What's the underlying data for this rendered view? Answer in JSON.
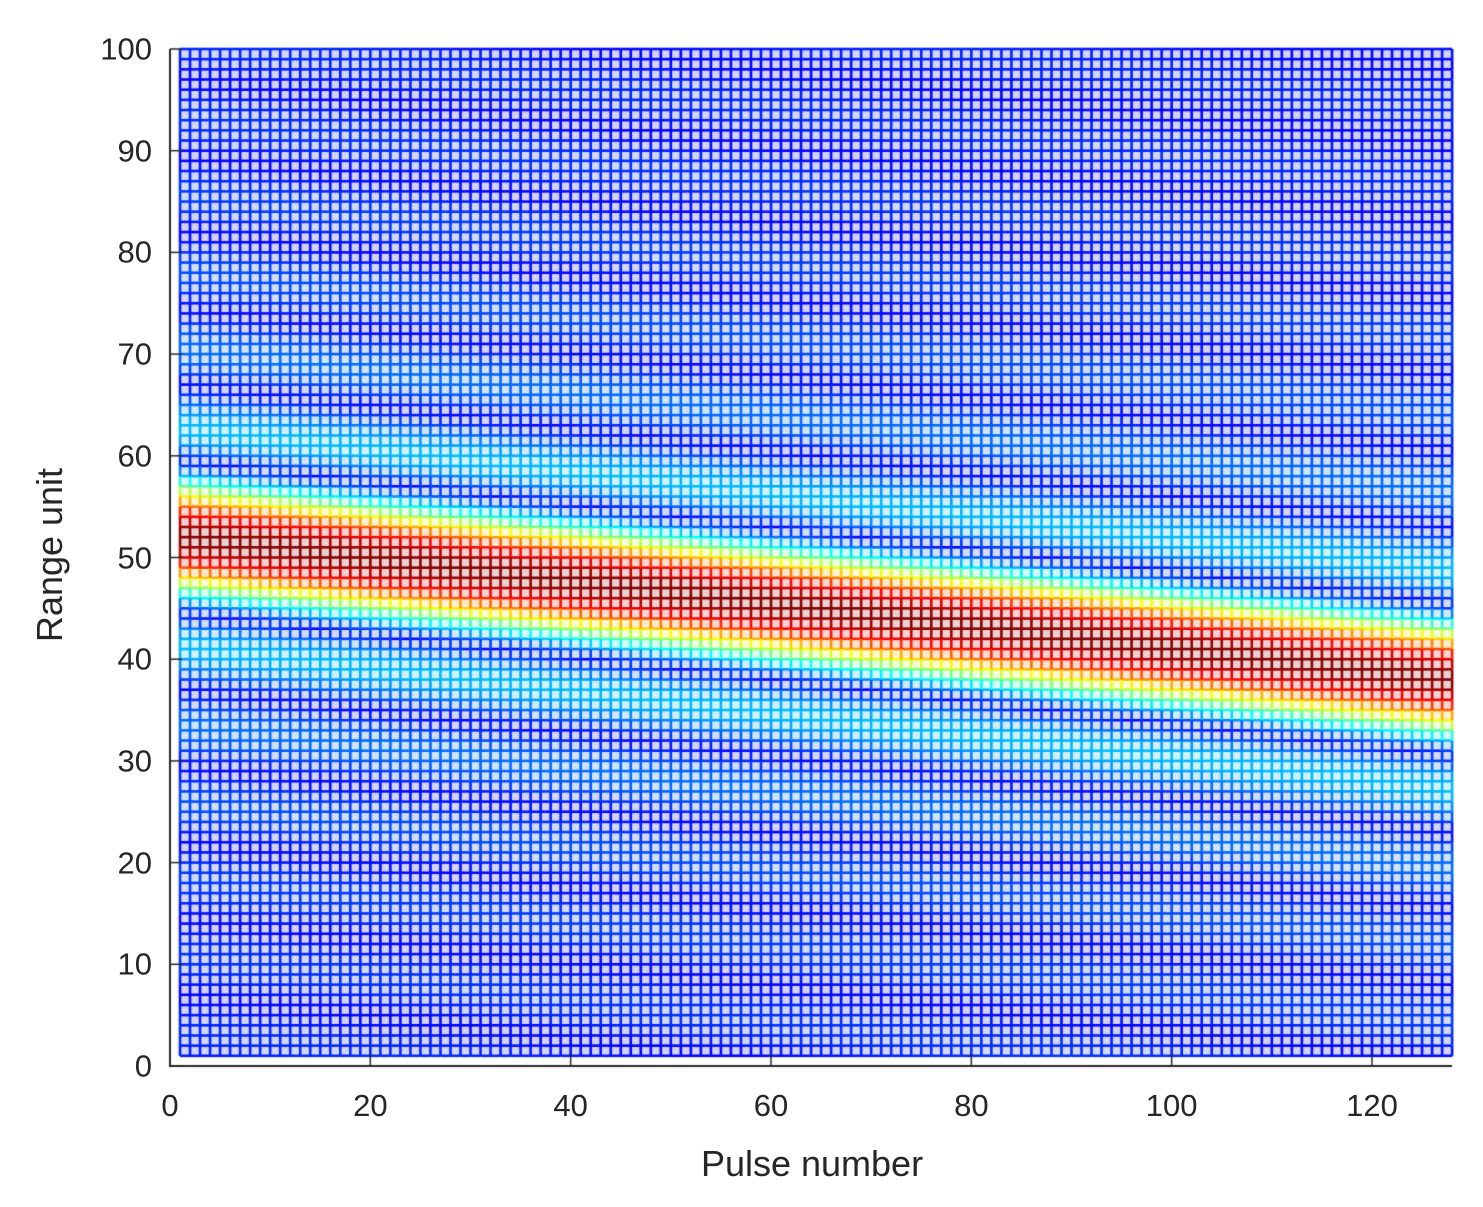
{
  "chart_data": {
    "type": "heatmap",
    "style": "mesh",
    "title": "",
    "xlabel": "Pulse number",
    "ylabel": "Range unit",
    "xlim": [
      0,
      128
    ],
    "ylim": [
      0,
      100
    ],
    "xticks": [
      "0",
      "20",
      "40",
      "60",
      "80",
      "100",
      "120"
    ],
    "yticks": [
      "0",
      "10",
      "20",
      "30",
      "40",
      "50",
      "60",
      "70",
      "80",
      "90",
      "100"
    ],
    "pulses": [
      1,
      128
    ],
    "range_units": [
      1,
      100
    ],
    "peak_range_at_first_pulse": 52,
    "peak_range_at_last_pulse": 38,
    "mainlobe_halfwidth_range_units": 7.5,
    "colormap": "jet",
    "grid": false,
    "legend": "none",
    "colors": {
      "background": "#ffffff",
      "low": "#1f2a8c",
      "high": "#8b0000",
      "axis": "#262626"
    }
  }
}
